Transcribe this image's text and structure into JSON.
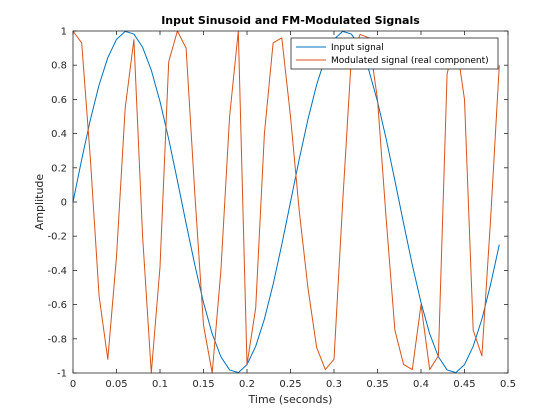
{
  "chart_data": {
    "type": "line",
    "title": "Input Sinusoid and FM-Modulated Signals",
    "xlabel": "Time (seconds)",
    "ylabel": "Amplitude",
    "xlim": [
      0,
      0.5
    ],
    "ylim": [
      -1,
      1
    ],
    "xticks": [
      0,
      0.05,
      0.1,
      0.15,
      0.2,
      0.25,
      0.3,
      0.35,
      0.4,
      0.45,
      0.5
    ],
    "yticks": [
      -1,
      -0.8,
      -0.6,
      -0.4,
      -0.2,
      0,
      0.2,
      0.4,
      0.6,
      0.8,
      1
    ],
    "grid": false,
    "legend_position": "top-right",
    "x": [
      0,
      0.01,
      0.02,
      0.03,
      0.04,
      0.05,
      0.06,
      0.07,
      0.08,
      0.09,
      0.1,
      0.11,
      0.12,
      0.13,
      0.14,
      0.15,
      0.16,
      0.17,
      0.18,
      0.19,
      0.2,
      0.21,
      0.22,
      0.23,
      0.24,
      0.25,
      0.26,
      0.27,
      0.28,
      0.29,
      0.3,
      0.31,
      0.32,
      0.33,
      0.34,
      0.35,
      0.36,
      0.37,
      0.38,
      0.39,
      0.4,
      0.41,
      0.42,
      0.43,
      0.44,
      0.45,
      0.46,
      0.47,
      0.48,
      0.49
    ],
    "series": [
      {
        "name": "Input signal",
        "color": "#0072bd",
        "values": [
          0,
          0.249,
          0.482,
          0.685,
          0.844,
          0.951,
          0.998,
          0.982,
          0.905,
          0.771,
          0.588,
          0.368,
          0.125,
          -0.125,
          -0.368,
          -0.588,
          -0.771,
          -0.905,
          -0.982,
          -0.998,
          -0.951,
          -0.844,
          -0.685,
          -0.482,
          -0.249,
          0,
          0.249,
          0.482,
          0.685,
          0.844,
          0.951,
          0.998,
          0.982,
          0.905,
          0.771,
          0.588,
          0.368,
          0.125,
          -0.125,
          -0.368,
          -0.588,
          -0.771,
          -0.905,
          -0.982,
          -0.998,
          -0.951,
          -0.844,
          -0.685,
          -0.482,
          -0.249
        ]
      },
      {
        "name": "Modulated signal (real component)",
        "color": "#d95319",
        "values": [
          1,
          0.93,
          0.25,
          -0.55,
          -0.92,
          -0.32,
          0.55,
          0.95,
          -0.2,
          -1.0,
          -0.38,
          0.82,
          1.0,
          0.9,
          0.05,
          -0.72,
          -1.0,
          -0.4,
          0.5,
          1.0,
          -0.95,
          -0.62,
          0.4,
          0.93,
          0.96,
          0.5,
          -0.05,
          -0.5,
          -0.85,
          -0.98,
          -0.92,
          0.0,
          0.85,
          0.98,
          0.96,
          0.6,
          -0.1,
          -0.75,
          -0.95,
          -0.98,
          -0.6,
          -0.98,
          -0.9,
          0.75,
          0.95,
          0.6,
          -0.75,
          -0.9,
          -0.1,
          0.8
        ]
      }
    ]
  }
}
